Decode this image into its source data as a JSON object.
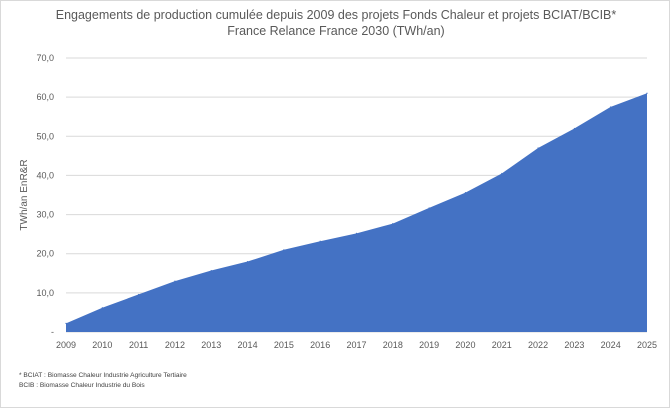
{
  "chart_data": {
    "type": "area",
    "title": "Engagements de production cumulée depuis 2009 des projets Fonds Chaleur et projets BCIAT/BCIB*",
    "subtitle": "France Relance France 2030 (TWh/an)",
    "xlabel": "",
    "ylabel": "TWh/an EnR&R",
    "categories": [
      "2009",
      "2010",
      "2011",
      "2012",
      "2013",
      "2014",
      "2015",
      "2016",
      "2017",
      "2018",
      "2019",
      "2020",
      "2021",
      "2022",
      "2023",
      "2024",
      "2025"
    ],
    "series": [
      {
        "values": [
          2.2,
          6.2,
          9.6,
          13.0,
          15.7,
          18.0,
          21.0,
          23.2,
          25.2,
          27.7,
          31.7,
          35.6,
          40.5,
          47.0,
          52.0,
          57.5,
          61.0
        ]
      }
    ],
    "ylim": [
      0,
      70
    ],
    "yticks": [
      "-",
      "10,0",
      "20,0",
      "30,0",
      "40,0",
      "50,0",
      "60,0",
      "70,0"
    ],
    "grid": true,
    "legend": "none",
    "colors": {
      "area": "#4472c4",
      "grid": "#d9d9d9",
      "text": "#595959"
    }
  },
  "footnotes": [
    "* BCIAT : Biomasse Chaleur Industrie Agriculture Tertiaire",
    "BCIB : Biomasse Chaleur Industrie du Bois"
  ]
}
